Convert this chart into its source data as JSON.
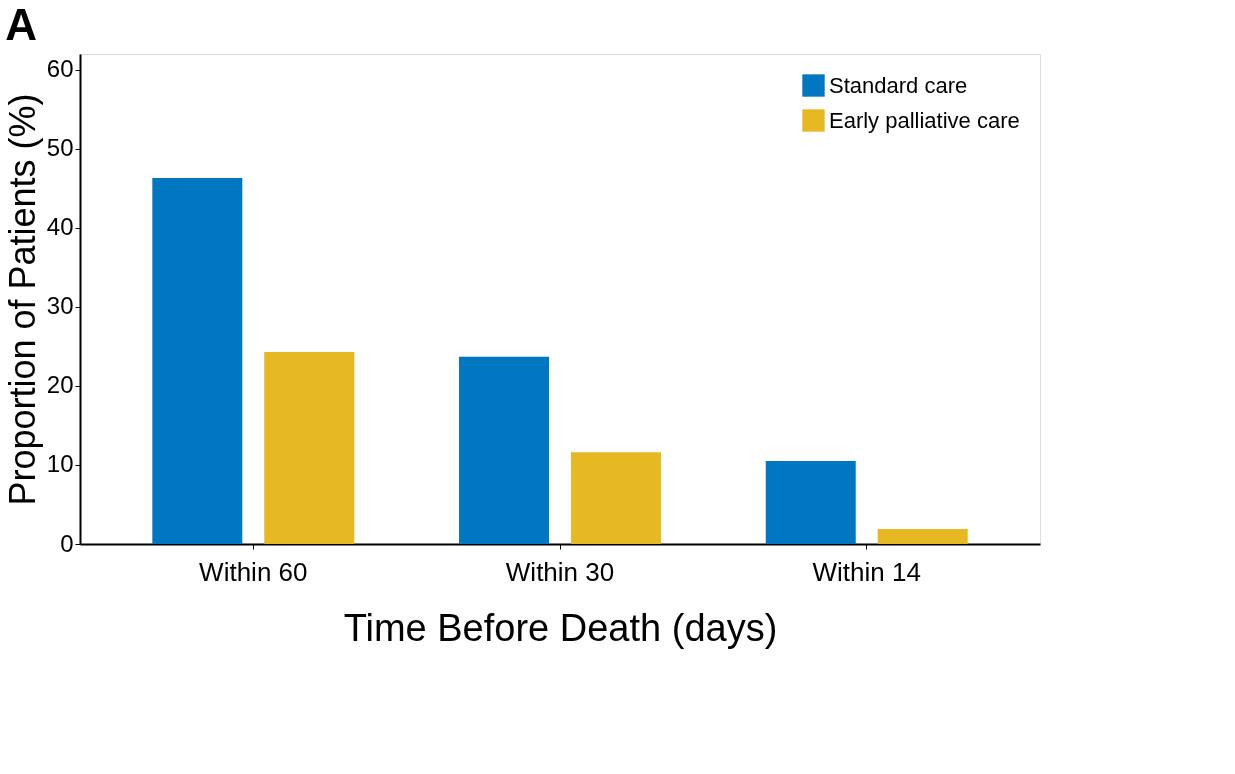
{
  "chart_data": {
    "type": "bar",
    "title": "A",
    "xlabel": "Time Before Death (days)",
    "ylabel": "Proportion of Patients (%)",
    "categories": [
      "Within 60",
      "Within 30",
      "Within 14"
    ],
    "series": [
      {
        "name": "Standard care",
        "color": "#0077c0",
        "values": [
          46.3,
          23.7,
          10.5
        ]
      },
      {
        "name": "Early palliative care",
        "color": "#e6b822",
        "values": [
          24.3,
          11.6,
          1.9
        ]
      }
    ],
    "ylim": [
      0,
      62
    ],
    "yticks": [
      0,
      10,
      20,
      30,
      40,
      50,
      60
    ],
    "grid": false,
    "legend": "top right"
  }
}
